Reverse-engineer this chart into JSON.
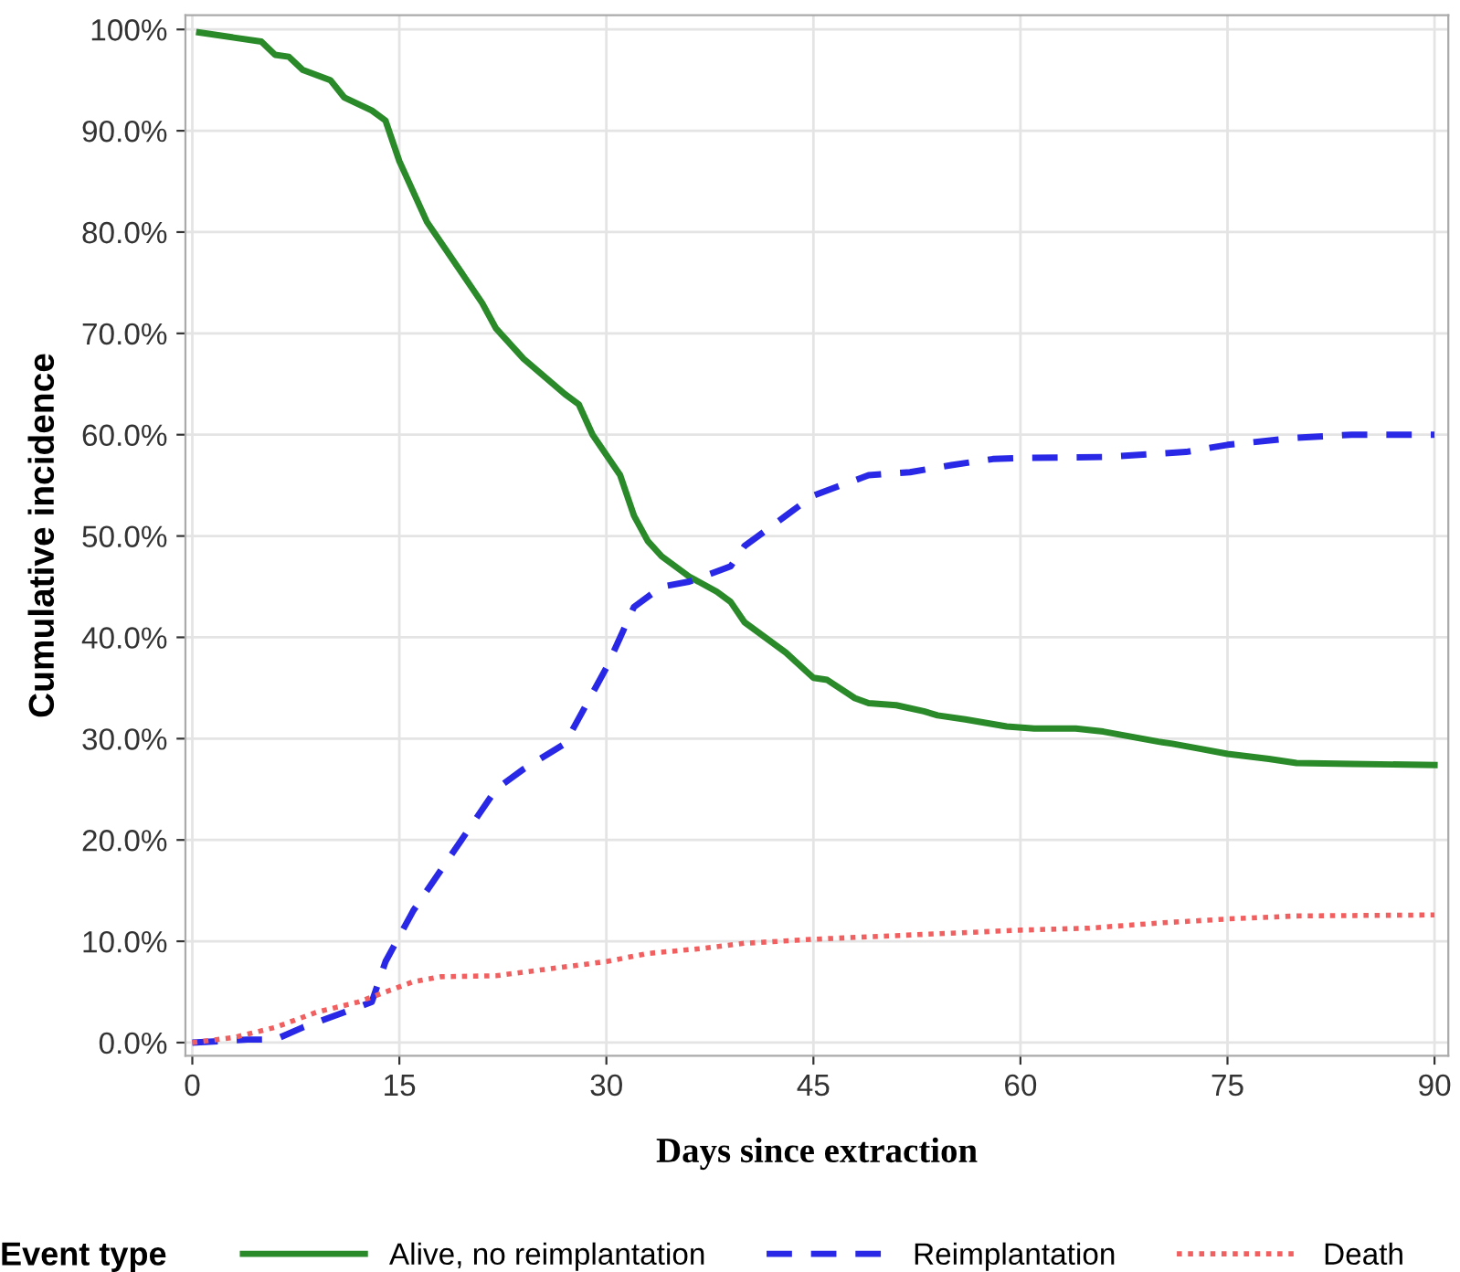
{
  "chart_data": {
    "type": "line",
    "xlabel": "Days since extraction",
    "ylabel": "Cumulative incidence",
    "legend_title": "Event type",
    "legend": "bottom",
    "grid": true,
    "xlim": [
      -0.5,
      91
    ],
    "xticks": [
      0,
      15,
      30,
      45,
      60,
      75,
      90
    ],
    "ylim": [
      -1.3,
      101.4
    ],
    "yticks": [
      {
        "value": 0,
        "label": "0.0%"
      },
      {
        "value": 10,
        "label": "10.0%"
      },
      {
        "value": 20,
        "label": "20.0%"
      },
      {
        "value": 30,
        "label": "30.0%"
      },
      {
        "value": 40,
        "label": "40.0%"
      },
      {
        "value": 50,
        "label": "50.0%"
      },
      {
        "value": 60,
        "label": "60.0%"
      },
      {
        "value": 70,
        "label": "70.0%"
      },
      {
        "value": 80,
        "label": "80.0%"
      },
      {
        "value": 90,
        "label": "90.0%"
      },
      {
        "value": 100,
        "label": "100%"
      }
    ],
    "series": [
      {
        "name": "Alive, no reimplantation",
        "color": "#2a8a2a",
        "line_style": "solid",
        "x": [
          0.5,
          3,
          5,
          6,
          7,
          8,
          10,
          11,
          13,
          14,
          15,
          17,
          20,
          21,
          22,
          24,
          27,
          28,
          29,
          31,
          32,
          33,
          34,
          36,
          38,
          39,
          40,
          43,
          45,
          46,
          48,
          49,
          51,
          53,
          54,
          56,
          59,
          61,
          64,
          66,
          68,
          70,
          71,
          73,
          75,
          78,
          80,
          84,
          90
        ],
        "values": [
          99.7,
          99.2,
          98.8,
          97.5,
          97.3,
          96,
          95,
          93.3,
          92,
          91,
          87,
          81,
          75,
          73,
          70.5,
          67.5,
          64,
          63,
          60,
          56,
          52,
          49.5,
          48,
          46,
          44.5,
          43.5,
          41.5,
          38.5,
          36,
          35.8,
          34,
          33.5,
          33.3,
          32.7,
          32.3,
          31.9,
          31.2,
          31,
          31,
          30.7,
          30.2,
          29.7,
          29.5,
          29,
          28.5,
          28,
          27.6,
          27.5,
          27.4
        ]
      },
      {
        "name": "Reimplantation",
        "color": "#2828e6",
        "line_style": "dashed",
        "x": [
          0,
          4,
          6,
          8,
          9,
          11,
          13,
          14,
          15,
          16,
          18,
          20,
          22,
          24,
          27,
          28,
          30,
          31,
          32,
          34,
          36,
          39,
          40,
          43,
          45,
          47,
          49,
          52,
          55,
          58,
          60,
          66,
          72,
          75,
          80,
          84,
          90
        ],
        "values": [
          0,
          0.3,
          0.3,
          1.5,
          2,
          3,
          4,
          8,
          10.5,
          13,
          17,
          21,
          25,
          27,
          29.5,
          32,
          37,
          40,
          43,
          45,
          45.5,
          47,
          49,
          52,
          54,
          55,
          56,
          56.3,
          57,
          57.6,
          57.7,
          57.8,
          58.3,
          59,
          59.7,
          60,
          60
        ]
      },
      {
        "name": "Death",
        "color": "#f06060",
        "line_style": "dotted",
        "x": [
          0,
          3,
          6,
          9,
          12,
          14,
          16,
          18,
          22,
          26,
          30,
          33,
          37,
          40,
          45,
          50,
          55,
          60,
          65,
          70,
          75,
          80,
          90
        ],
        "values": [
          0,
          0.5,
          1.5,
          3,
          4,
          5,
          6,
          6.5,
          6.6,
          7.3,
          8,
          8.8,
          9.3,
          9.8,
          10.2,
          10.5,
          10.8,
          11.1,
          11.3,
          11.8,
          12.2,
          12.5,
          12.6
        ]
      }
    ]
  }
}
